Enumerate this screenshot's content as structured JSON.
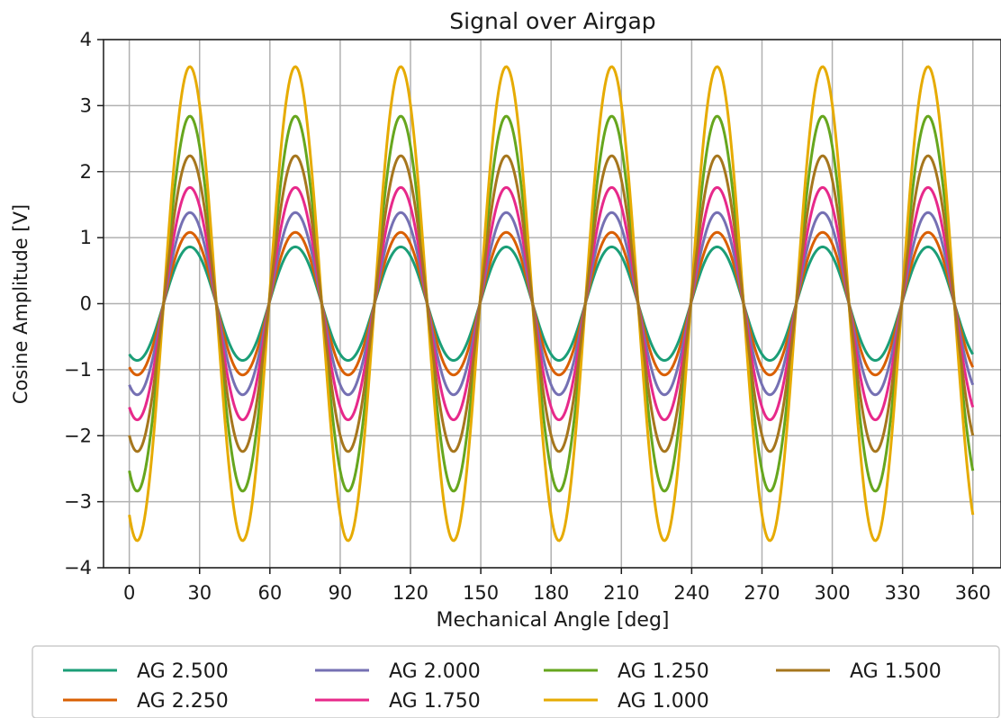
{
  "chart_data": {
    "type": "line",
    "title": "Signal over Airgap",
    "xlabel": "Mechanical Angle [deg]",
    "ylabel": "Cosine Amplitude [V]",
    "xlim": [
      -11,
      372
    ],
    "ylim": [
      -4,
      4
    ],
    "xticks": [
      0,
      30,
      60,
      90,
      120,
      150,
      180,
      210,
      240,
      270,
      300,
      330,
      360
    ],
    "xtick_labels": [
      "0",
      "30",
      "60",
      "90",
      "120",
      "150",
      "180",
      "210",
      "240",
      "270",
      "300",
      "330",
      "360"
    ],
    "yticks": [
      4,
      3,
      2,
      1,
      0,
      -1,
      -2,
      -3,
      -4
    ],
    "ytick_labels": [
      "4",
      "3",
      "2",
      "1",
      "0",
      "−1",
      "−2",
      "−3",
      "−4"
    ],
    "grid": true,
    "legend_position": "bottom",
    "waveform": {
      "shape": "cosine",
      "cycles_per_revolution": 8,
      "phase_deg": 153,
      "x_start": 0,
      "x_end": 360
    },
    "series": [
      {
        "name": "AG 2.500",
        "color": "#1b9e77",
        "amplitude": 0.86
      },
      {
        "name": "AG 2.250",
        "color": "#d95f02",
        "amplitude": 1.08
      },
      {
        "name": "AG 2.000",
        "color": "#7570b3",
        "amplitude": 1.38
      },
      {
        "name": "AG 1.750",
        "color": "#e7298a",
        "amplitude": 1.76
      },
      {
        "name": "AG 1.250",
        "color": "#66a61e",
        "amplitude": 2.84
      },
      {
        "name": "AG 1.000",
        "color": "#e6ab02",
        "amplitude": 3.59
      },
      {
        "name": "AG 1.500",
        "color": "#a6761d",
        "amplitude": 2.24
      }
    ],
    "legend_order": [
      "AG 2.500",
      "AG 2.250",
      "AG 2.000",
      "AG 1.750",
      "AG 1.250",
      "AG 1.000",
      "AG 1.500"
    ]
  }
}
